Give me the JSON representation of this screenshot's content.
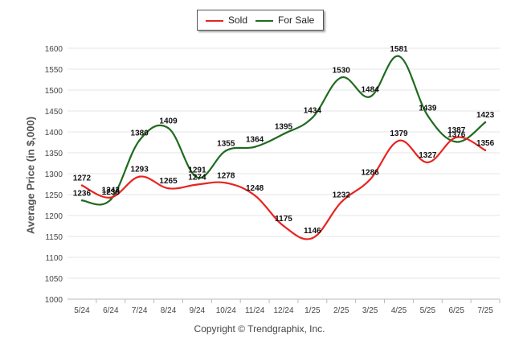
{
  "chart_data": {
    "type": "line",
    "categories": [
      "5/24",
      "6/24",
      "7/24",
      "8/24",
      "9/24",
      "10/24",
      "11/24",
      "12/24",
      "1/25",
      "2/25",
      "3/25",
      "4/25",
      "5/25",
      "6/25",
      "7/25"
    ],
    "series": [
      {
        "name": "Sold",
        "color": "#e8231f",
        "values": [
          1272,
          1243,
          1293,
          1265,
          1274,
          1278,
          1248,
          1175,
          1146,
          1232,
          1286,
          1379,
          1327,
          1387,
          1356
        ]
      },
      {
        "name": "For Sale",
        "color": "#1f6b1f",
        "values": [
          1236,
          1238,
          1380,
          1409,
          1291,
          1355,
          1364,
          1395,
          1434,
          1530,
          1484,
          1581,
          1439,
          1376,
          1423
        ]
      }
    ],
    "ylabel": "Average Price (in $,000)",
    "ylim": [
      1000,
      1600
    ],
    "yticks": [
      1000,
      1050,
      1100,
      1150,
      1200,
      1250,
      1300,
      1350,
      1400,
      1450,
      1500,
      1550,
      1600
    ],
    "grid": true,
    "legend": "top-center"
  },
  "credit": "Copyright © Trendgraphix, Inc."
}
